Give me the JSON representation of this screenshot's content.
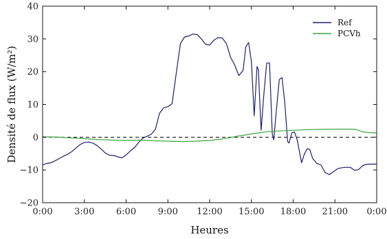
{
  "chart_data": {
    "type": "line",
    "title": "",
    "xlabel": "Heures",
    "ylabel": "Densité de flux (W/m²)",
    "xlim": [
      0,
      24
    ],
    "ylim": [
      -20,
      40
    ],
    "x_ticks": [
      0,
      3,
      6,
      9,
      12,
      15,
      18,
      21,
      24
    ],
    "x_tick_labels": [
      "0:00",
      "3:00",
      "6:00",
      "9:00",
      "12:00",
      "15:00",
      "18:00",
      "21:00",
      "0:00"
    ],
    "y_ticks": [
      -20,
      -10,
      0,
      10,
      20,
      30,
      40
    ],
    "y_tick_labels": [
      "−20",
      "−10",
      "0",
      "10",
      "20",
      "30",
      "40"
    ],
    "grid": false,
    "legend_position": "top-right",
    "zero_line": {
      "y": 0,
      "style": "dashed",
      "color": "#000000"
    },
    "series": [
      {
        "name": "Ref",
        "color": "#1a1f6b",
        "points": [
          [
            0,
            -8.5
          ],
          [
            0.3,
            -8
          ],
          [
            0.6,
            -7.8
          ],
          [
            0.9,
            -7.2
          ],
          [
            1.2,
            -6.5
          ],
          [
            1.5,
            -5.8
          ],
          [
            1.8,
            -5.2
          ],
          [
            2.1,
            -4.4
          ],
          [
            2.4,
            -3.3
          ],
          [
            2.7,
            -2.2
          ],
          [
            3.0,
            -1.6
          ],
          [
            3.3,
            -1.5
          ],
          [
            3.6,
            -1.8
          ],
          [
            3.9,
            -2.5
          ],
          [
            4.2,
            -3.6
          ],
          [
            4.5,
            -4.8
          ],
          [
            4.8,
            -5.5
          ],
          [
            5.1,
            -5.6
          ],
          [
            5.4,
            -6
          ],
          [
            5.7,
            -6.3
          ],
          [
            6.0,
            -5.4
          ],
          [
            6.3,
            -4.2
          ],
          [
            6.6,
            -3.2
          ],
          [
            6.9,
            -1.6
          ],
          [
            7.2,
            -0.3
          ],
          [
            7.5,
            0.3
          ],
          [
            7.8,
            0.9
          ],
          [
            8.1,
            2.4
          ],
          [
            8.4,
            7.3
          ],
          [
            8.7,
            9
          ],
          [
            9.0,
            9.3
          ],
          [
            9.3,
            10.2
          ],
          [
            9.6,
            19.5
          ],
          [
            9.9,
            28.6
          ],
          [
            10.2,
            30.6
          ],
          [
            10.5,
            30.9
          ],
          [
            10.8,
            31.5
          ],
          [
            11.1,
            31.3
          ],
          [
            11.4,
            30
          ],
          [
            11.7,
            28.4
          ],
          [
            12.0,
            28.1
          ],
          [
            12.3,
            29.6
          ],
          [
            12.6,
            30.4
          ],
          [
            12.9,
            30.3
          ],
          [
            13.2,
            28.6
          ],
          [
            13.5,
            24.4
          ],
          [
            13.8,
            22
          ],
          [
            14.1,
            18.8
          ],
          [
            14.4,
            20.4
          ],
          [
            14.6,
            27.6
          ],
          [
            14.8,
            28.9
          ],
          [
            15.0,
            23
          ],
          [
            15.2,
            6.5
          ],
          [
            15.4,
            21.6
          ],
          [
            15.5,
            20.6
          ],
          [
            15.6,
            11
          ],
          [
            15.7,
            2.1
          ],
          [
            15.9,
            13.5
          ],
          [
            16.1,
            22.6
          ],
          [
            16.3,
            22.7
          ],
          [
            16.5,
            1
          ],
          [
            16.6,
            -0.8
          ],
          [
            16.8,
            8.5
          ],
          [
            17.0,
            17.6
          ],
          [
            17.2,
            18.2
          ],
          [
            17.4,
            10.5
          ],
          [
            17.6,
            -1.3
          ],
          [
            17.7,
            -1.8
          ],
          [
            17.9,
            1.3
          ],
          [
            18.1,
            1.6
          ],
          [
            18.3,
            -1
          ],
          [
            18.5,
            -5.5
          ],
          [
            18.6,
            -7.8
          ],
          [
            18.8,
            -5.2
          ],
          [
            19.0,
            -3.5
          ],
          [
            19.2,
            -3.8
          ],
          [
            19.4,
            -6.5
          ],
          [
            19.7,
            -8
          ],
          [
            20.0,
            -8.5
          ],
          [
            20.3,
            -10.8
          ],
          [
            20.6,
            -11.4
          ],
          [
            20.9,
            -10.5
          ],
          [
            21.2,
            -9.6
          ],
          [
            21.5,
            -9.3
          ],
          [
            21.8,
            -9.2
          ],
          [
            22.1,
            -9.2
          ],
          [
            22.4,
            -10.1
          ],
          [
            22.7,
            -9.9
          ],
          [
            23.0,
            -8.6
          ],
          [
            23.3,
            -8.3
          ],
          [
            23.6,
            -8.2
          ],
          [
            24.0,
            -8.2
          ]
        ]
      },
      {
        "name": "PCVh",
        "color": "#3aa53a",
        "points": [
          [
            0,
            0.1
          ],
          [
            1,
            0.05
          ],
          [
            2,
            -0.2
          ],
          [
            3,
            -0.45
          ],
          [
            4,
            -0.7
          ],
          [
            5,
            -0.9
          ],
          [
            6,
            -1
          ],
          [
            7,
            -0.9
          ],
          [
            8,
            -1.1
          ],
          [
            9,
            -1.2
          ],
          [
            10,
            -1.3
          ],
          [
            11,
            -1.2
          ],
          [
            12,
            -1
          ],
          [
            13,
            -0.5
          ],
          [
            14,
            0.3
          ],
          [
            15,
            1
          ],
          [
            16,
            1.6
          ],
          [
            17,
            1.9
          ],
          [
            18,
            2.1
          ],
          [
            19,
            2.3
          ],
          [
            20,
            2.4
          ],
          [
            21,
            2.45
          ],
          [
            22,
            2.45
          ],
          [
            22.5,
            2.4
          ],
          [
            23,
            1.6
          ],
          [
            23.5,
            1.4
          ],
          [
            24,
            1.3
          ]
        ]
      }
    ]
  }
}
